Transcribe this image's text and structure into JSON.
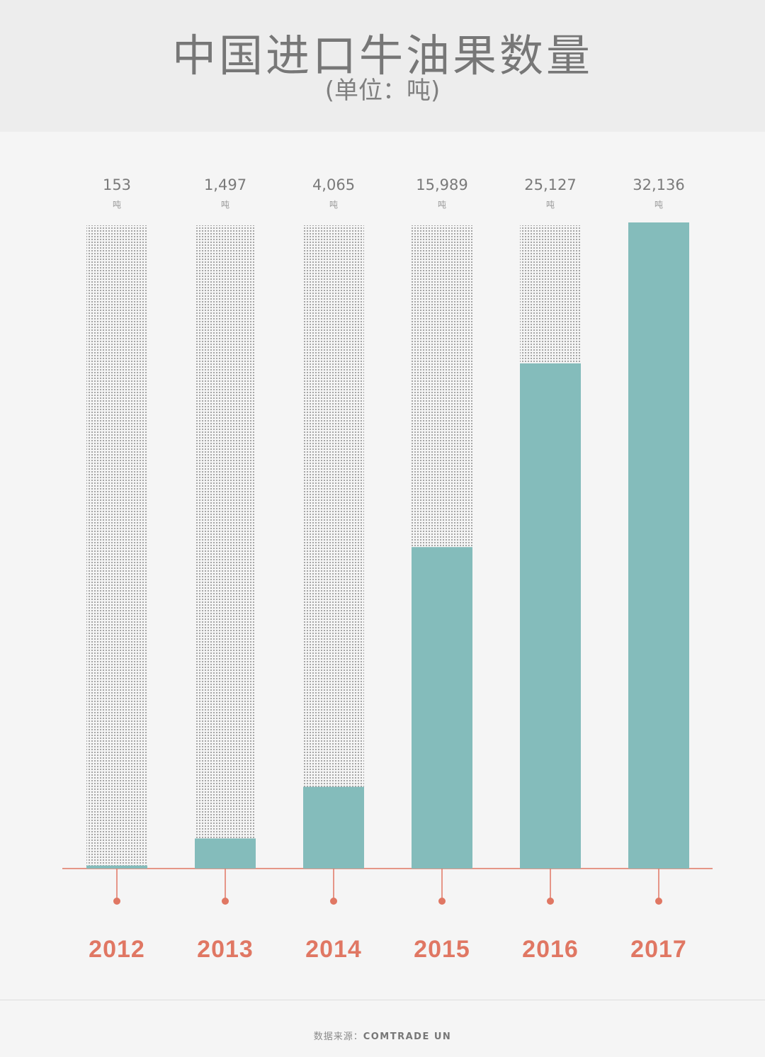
{
  "header": {
    "title": "中国进口牛油果数量",
    "subtitle": "(单位：吨)"
  },
  "chart_data": {
    "type": "bar",
    "title": "中国进口牛油果数量",
    "subtitle": "(单位：吨)",
    "categories": [
      "2012",
      "2013",
      "2014",
      "2015",
      "2016",
      "2017"
    ],
    "values": [
      153,
      1497,
      4065,
      15989,
      25127,
      32136
    ],
    "value_labels": [
      "153",
      "1,497",
      "4,065",
      "15,989",
      "25,127",
      "32,136"
    ],
    "unit_label": "吨",
    "ylim": [
      0,
      32136
    ],
    "grid": false,
    "legend": "none"
  },
  "footer": {
    "source_label": "数据来源：",
    "source_name": "COMTRADE UN"
  },
  "colors": {
    "bar": "#84bcbb",
    "dots": "#8c8c8c",
    "axis": "#e07763",
    "year": "#e07763",
    "value_text": "#7a7a7a"
  }
}
